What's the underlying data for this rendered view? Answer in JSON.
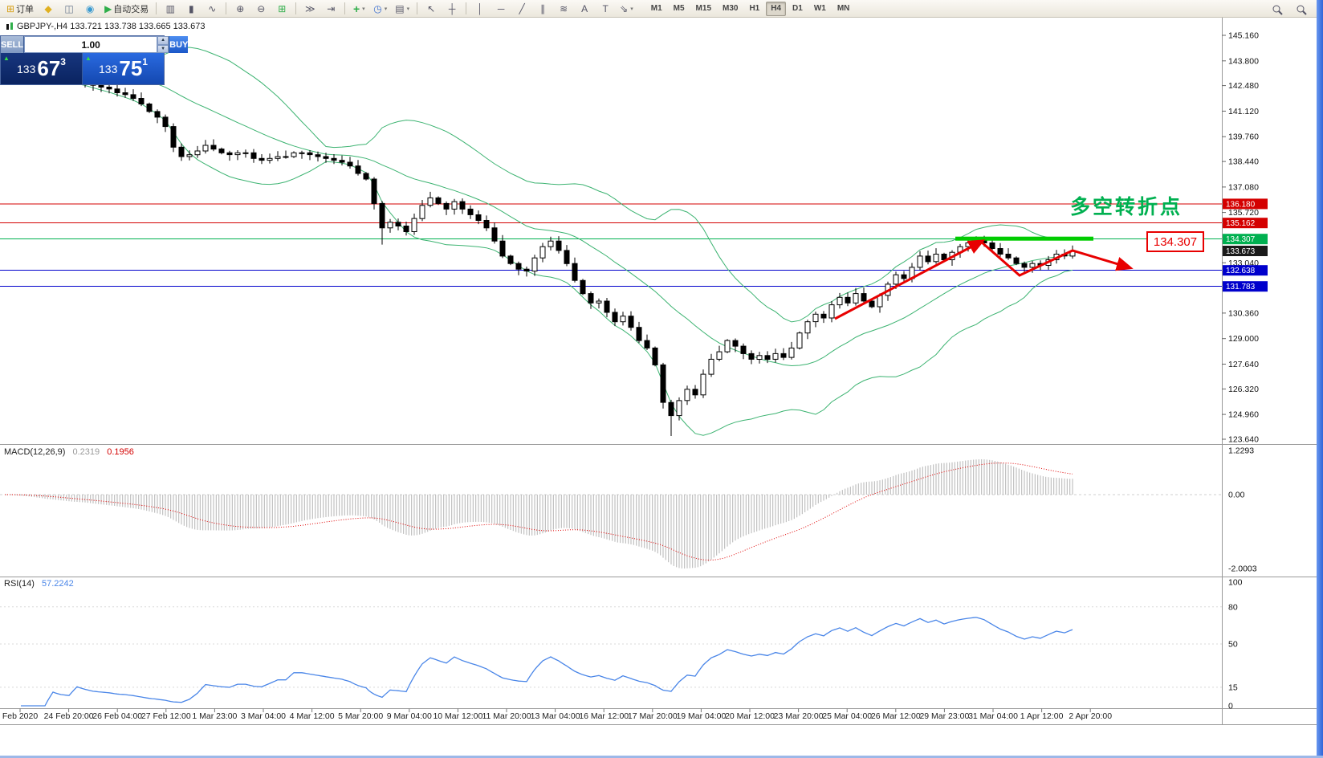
{
  "toolbar": {
    "items": [
      {
        "name": "new-order-button",
        "glyph": "⊞",
        "glyph_color": "#d8a018",
        "label": "订单"
      },
      {
        "name": "market-watch-icon",
        "glyph": "◆",
        "glyph_color": "#e0b020"
      },
      {
        "name": "data-window-icon",
        "glyph": "◫",
        "glyph_color": "#6a7a90"
      },
      {
        "name": "navigator-icon",
        "glyph": "◉",
        "glyph_color": "#3a9ad0"
      },
      {
        "name": "autotrading-button",
        "glyph": "▶",
        "glyph_color": "#2fae4a",
        "label": "自动交易"
      },
      {
        "sep": true
      },
      {
        "name": "bar-chart-icon",
        "glyph": "▥"
      },
      {
        "name": "candlestick-chart-icon",
        "glyph": "▮"
      },
      {
        "name": "line-chart-icon",
        "glyph": "∿"
      },
      {
        "sep": true
      },
      {
        "name": "zoom-in-icon",
        "glyph": "⊕"
      },
      {
        "name": "zoom-out-icon",
        "glyph": "⊖"
      },
      {
        "name": "tile-windows-icon",
        "glyph": "⊞",
        "glyph_color": "#2fae4a"
      },
      {
        "sep": true
      },
      {
        "name": "auto-scroll-icon",
        "glyph": "≫"
      },
      {
        "name": "chart-shift-icon",
        "glyph": "⇥"
      },
      {
        "sep": true
      },
      {
        "name": "indicators-icon",
        "glyph": "+",
        "glyph_color": "#2fae4a",
        "caret": true
      },
      {
        "name": "periods-icon",
        "glyph": "◷",
        "glyph_color": "#3a6ed0",
        "caret": true
      },
      {
        "name": "templates-icon",
        "glyph": "▤",
        "caret": true
      },
      {
        "sep": true
      },
      {
        "name": "cursor-icon",
        "glyph": "↖"
      },
      {
        "name": "crosshair-icon",
        "glyph": "┼"
      },
      {
        "sep": true
      },
      {
        "name": "vertical-line-icon",
        "glyph": "│"
      },
      {
        "name": "horizontal-line-icon",
        "glyph": "─"
      },
      {
        "name": "trendline-icon",
        "glyph": "╱"
      },
      {
        "name": "channel-icon",
        "glyph": "∥"
      },
      {
        "name": "fibonacci-icon",
        "glyph": "≋"
      },
      {
        "name": "text-icon",
        "glyph": "A"
      },
      {
        "name": "label-icon",
        "glyph": "T"
      },
      {
        "name": "shapes-icon",
        "glyph": "⇘",
        "caret": true
      }
    ],
    "timeframes": [
      "M1",
      "M5",
      "M15",
      "M30",
      "H1",
      "H4",
      "D1",
      "W1",
      "MN"
    ],
    "active_timeframe": "H4",
    "right_items": [
      {
        "name": "search-icon",
        "type": "mag"
      },
      {
        "name": "magnifier-icon",
        "type": "mag"
      }
    ]
  },
  "symbol_bar": {
    "text": "GBPJPY-,H4  133.721 133.738 133.665 133.673"
  },
  "trade_panel": {
    "sell_label": "SELL",
    "buy_label": "BUY",
    "volume": "1.00",
    "spin_up": "▲",
    "spin_down": "▼",
    "sell_price_prefix": "133",
    "sell_price_main": "67",
    "sell_price_sup": "3",
    "buy_price_prefix": "133",
    "buy_price_main": "75",
    "buy_price_sup": "1",
    "tick_arrow": "▲"
  },
  "annotations": {
    "turning_point_text": "多空转折点",
    "price_label": "134.307",
    "colors": {
      "arrow": "#e80000",
      "turning_point": "#00b050",
      "resistance": "#00cc00"
    }
  },
  "chart_data": {
    "type": "candlestick",
    "symbol": "GBPJPY-",
    "timeframe": "H4",
    "price_axis": {
      "min": 123.64,
      "max": 145.16,
      "ticks": [
        "145.160",
        "143.800",
        "142.480",
        "141.120",
        "139.760",
        "138.440",
        "137.080",
        "135.720",
        "134.360",
        "133.040",
        "131.680",
        "130.360",
        "129.000",
        "127.640",
        "126.320",
        "124.960",
        "123.640"
      ]
    },
    "closes": [
      143.8,
      143.6,
      143.5,
      143.3,
      143.2,
      143.0,
      143.1,
      142.9,
      142.8,
      142.9,
      142.7,
      142.5,
      142.4,
      142.3,
      142.1,
      142.0,
      141.8,
      141.5,
      141.1,
      140.8,
      140.3,
      139.2,
      138.7,
      138.8,
      139.0,
      139.3,
      139.1,
      138.9,
      138.8,
      138.9,
      138.9,
      138.6,
      138.5,
      138.6,
      138.7,
      138.7,
      138.9,
      138.9,
      138.8,
      138.7,
      138.6,
      138.5,
      138.4,
      138.2,
      137.8,
      137.5,
      136.2,
      134.9,
      135.2,
      135.0,
      134.7,
      135.4,
      136.1,
      136.5,
      136.2,
      135.9,
      136.3,
      135.9,
      135.6,
      135.3,
      134.9,
      134.2,
      133.4,
      133.0,
      132.7,
      132.6,
      133.3,
      133.9,
      134.2,
      133.7,
      133.0,
      132.1,
      131.4,
      130.9,
      131.0,
      130.4,
      129.9,
      130.2,
      129.6,
      128.9,
      128.5,
      127.6,
      125.6,
      124.9,
      125.7,
      126.3,
      126.0,
      127.1,
      127.9,
      128.3,
      128.9,
      128.6,
      128.2,
      127.9,
      128.1,
      127.9,
      128.2,
      128.0,
      128.5,
      129.3,
      129.9,
      130.3,
      130.1,
      130.8,
      131.2,
      130.9,
      131.4,
      131.0,
      130.7,
      131.3,
      131.9,
      132.4,
      132.2,
      132.8,
      133.4,
      133.1,
      133.5,
      133.2,
      133.6,
      133.9,
      134.1,
      134.25,
      134.1,
      133.8,
      133.5,
      133.3,
      133.0,
      132.8,
      133.0,
      132.9,
      133.2,
      133.5,
      133.4,
      133.673
    ],
    "bollinger": {
      "period": 20,
      "deviation": 2,
      "color": "#3cb371"
    },
    "hlines": [
      {
        "price": 136.18,
        "label": "136.180",
        "color": "#d40000"
      },
      {
        "price": 135.162,
        "label": "135.162",
        "color": "#d40000"
      },
      {
        "price": 134.307,
        "label": "134.307",
        "color": "#00b050"
      },
      {
        "price": 132.638,
        "label": "132.638",
        "color": "#0000cc"
      },
      {
        "price": 131.783,
        "label": "131.783",
        "color": "#0000cc"
      }
    ],
    "resistance_zone": {
      "price": 134.307,
      "color": "#00cc00"
    },
    "current_price": 133.673,
    "current_price_label": "133.673",
    "macd": {
      "label": "MACD(12,26,9)",
      "main_value": "0.2319",
      "signal_value": "0.1956",
      "axis": [
        "1.2293",
        "0.00",
        "-2.0003"
      ],
      "histogram_color": "#b4b4b4",
      "signal_color": "#e00000"
    },
    "rsi": {
      "label": "RSI(14)",
      "value": "57.2242",
      "axis": [
        "100",
        "80",
        "50",
        "15",
        "0"
      ],
      "levels": [
        80,
        50,
        15
      ],
      "line_color": "#4a86e8"
    },
    "time_labels": [
      "Feb 2020",
      "24 Feb 20:00",
      "26 Feb 04:00",
      "27 Feb 12:00",
      "1 Mar 23:00",
      "3 Mar 04:00",
      "4 Mar 12:00",
      "5 Mar 20:00",
      "9 Mar 04:00",
      "10 Mar 12:00",
      "11 Mar 20:00",
      "13 Mar 04:00",
      "16 Mar 12:00",
      "17 Mar 20:00",
      "19 Mar 04:00",
      "20 Mar 12:00",
      "23 Mar 20:00",
      "25 Mar 04:00",
      "26 Mar 12:00",
      "29 Mar 23:00",
      "31 Mar 04:00",
      "1 Apr 12:00",
      "2 Apr 20:00"
    ]
  }
}
